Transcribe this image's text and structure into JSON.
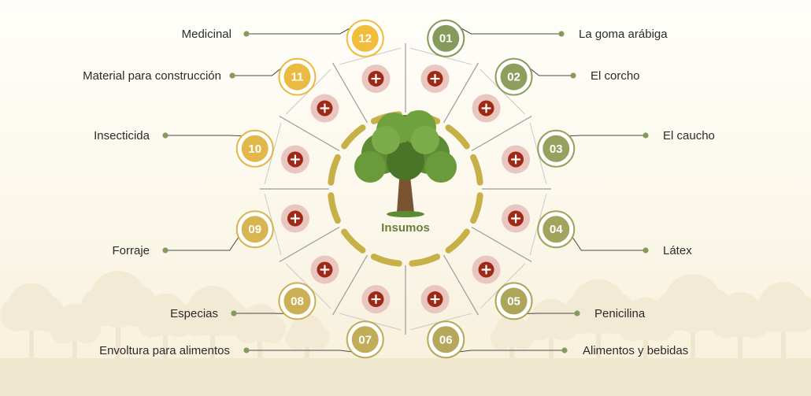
{
  "center": {
    "label": "Insumos",
    "icon": "tree-icon"
  },
  "items": [
    {
      "num": "01",
      "label": "La goma arábiga"
    },
    {
      "num": "02",
      "label": "El corcho"
    },
    {
      "num": "03",
      "label": "El caucho"
    },
    {
      "num": "04",
      "label": "Látex"
    },
    {
      "num": "05",
      "label": "Penicilina"
    },
    {
      "num": "06",
      "label": "Alimentos y bebidas"
    },
    {
      "num": "07",
      "label": "Envoltura para alimentos"
    },
    {
      "num": "08",
      "label": "Especias"
    },
    {
      "num": "09",
      "label": "Forraje"
    },
    {
      "num": "10",
      "label": "Insecticida"
    },
    {
      "num": "11",
      "label": "Material para construcción"
    },
    {
      "num": "12",
      "label": "Medicinal"
    }
  ],
  "colors": {
    "badge": [
      "#869a5b",
      "#8e9e5d",
      "#98a05e",
      "#a2a35c",
      "#aca55a",
      "#b6a85a",
      "#c1ac58",
      "#cdb055",
      "#d9b551",
      "#e2b84b",
      "#eabb43",
      "#f1bd3a"
    ],
    "plus_inner": "#9c2a16",
    "plus_outer": "#e9c7c0",
    "connector_dot": "#869a5b",
    "line": "#4a4a4a",
    "dash": "#c8b048",
    "center_text": "#6b7f3c"
  }
}
